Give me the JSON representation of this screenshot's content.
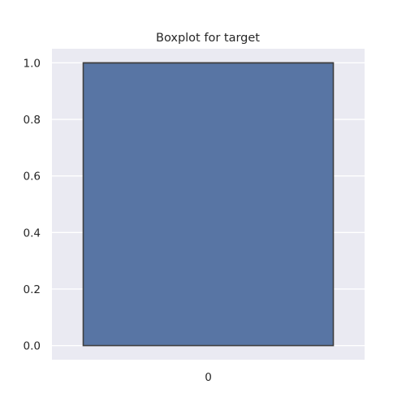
{
  "chart_data": {
    "type": "boxplot",
    "title": "Boxplot for target",
    "xlabel": "",
    "ylabel": "",
    "categories": [
      "0"
    ],
    "boxes": [
      {
        "category": "0",
        "whisker_low": 0.0,
        "q1": 0.0,
        "median": 1.0,
        "q3": 1.0,
        "whisker_high": 1.0
      }
    ],
    "ylim": [
      -0.05,
      1.05
    ],
    "yticks": [
      0.0,
      0.2,
      0.4,
      0.6,
      0.8,
      1.0
    ],
    "ytick_labels": [
      "0.0",
      "0.2",
      "0.4",
      "0.6",
      "0.8",
      "1.0"
    ],
    "grid": true,
    "colors": {
      "background": "#eaeaf2",
      "box_fill": "#5875a4",
      "box_edge": "#3f3f3f",
      "grid": "#ffffff"
    }
  }
}
